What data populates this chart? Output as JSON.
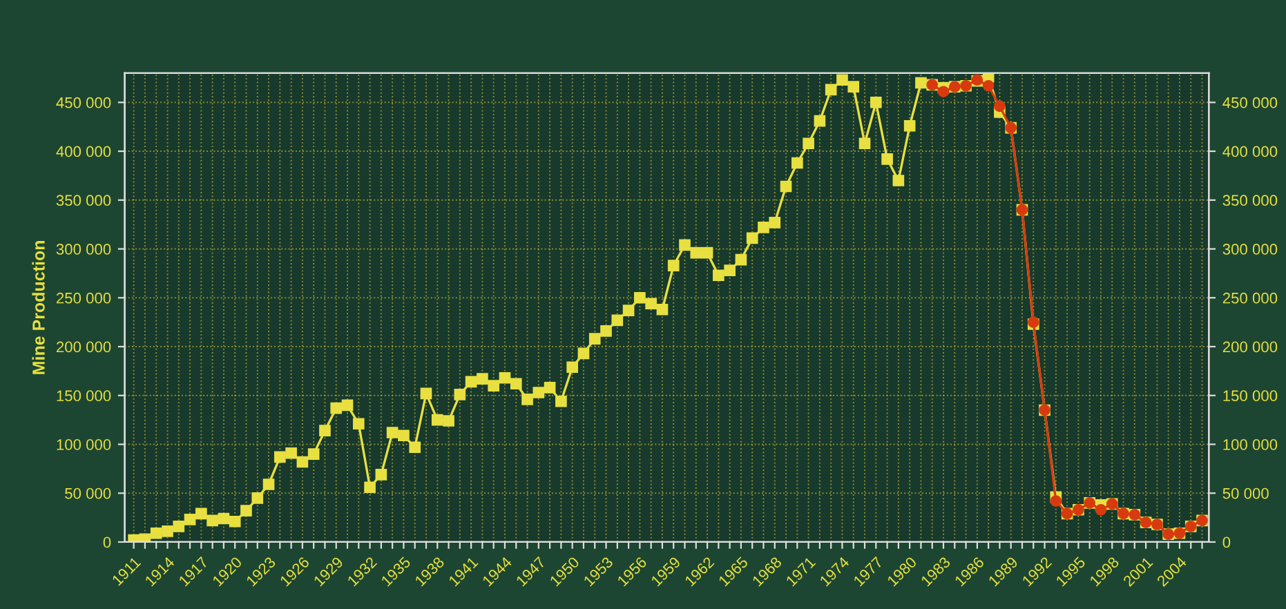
{
  "chart_data": {
    "type": "line",
    "ylabel": "Mine Production",
    "grid": true,
    "line_style": "solid",
    "xlim": [
      1910.2,
      2006.6
    ],
    "ylim": [
      0,
      480000
    ],
    "y2lim": [
      0,
      480000
    ],
    "xticks": [
      {
        "value": 1911,
        "label": "1911"
      },
      {
        "value": 1912,
        "label": null
      },
      {
        "value": 1913,
        "label": null
      },
      {
        "value": 1914,
        "label": "1914"
      },
      {
        "value": 1915,
        "label": null
      },
      {
        "value": 1916,
        "label": null
      },
      {
        "value": 1917,
        "label": "1917"
      },
      {
        "value": 1918,
        "label": null
      },
      {
        "value": 1919,
        "label": null
      },
      {
        "value": 1920,
        "label": "1920"
      },
      {
        "value": 1921,
        "label": null
      },
      {
        "value": 1922,
        "label": null
      },
      {
        "value": 1923,
        "label": "1923"
      },
      {
        "value": 1924,
        "label": null
      },
      {
        "value": 1925,
        "label": null
      },
      {
        "value": 1926,
        "label": "1926"
      },
      {
        "value": 1927,
        "label": null
      },
      {
        "value": 1928,
        "label": null
      },
      {
        "value": 1929,
        "label": "1929"
      },
      {
        "value": 1930,
        "label": null
      },
      {
        "value": 1931,
        "label": null
      },
      {
        "value": 1932,
        "label": "1932"
      },
      {
        "value": 1933,
        "label": null
      },
      {
        "value": 1934,
        "label": null
      },
      {
        "value": 1935,
        "label": "1935"
      },
      {
        "value": 1936,
        "label": null
      },
      {
        "value": 1937,
        "label": null
      },
      {
        "value": 1938,
        "label": "1938"
      },
      {
        "value": 1939,
        "label": null
      },
      {
        "value": 1940,
        "label": null
      },
      {
        "value": 1941,
        "label": "1941"
      },
      {
        "value": 1942,
        "label": null
      },
      {
        "value": 1943,
        "label": null
      },
      {
        "value": 1944,
        "label": "1944"
      },
      {
        "value": 1945,
        "label": null
      },
      {
        "value": 1946,
        "label": null
      },
      {
        "value": 1947,
        "label": "1947"
      },
      {
        "value": 1948,
        "label": null
      },
      {
        "value": 1949,
        "label": null
      },
      {
        "value": 1950,
        "label": "1950"
      },
      {
        "value": 1951,
        "label": null
      },
      {
        "value": 1952,
        "label": null
      },
      {
        "value": 1953,
        "label": "1953"
      },
      {
        "value": 1954,
        "label": null
      },
      {
        "value": 1955,
        "label": null
      },
      {
        "value": 1956,
        "label": "1956"
      },
      {
        "value": 1957,
        "label": null
      },
      {
        "value": 1958,
        "label": null
      },
      {
        "value": 1959,
        "label": "1959"
      },
      {
        "value": 1960,
        "label": null
      },
      {
        "value": 1961,
        "label": null
      },
      {
        "value": 1962,
        "label": "1962"
      },
      {
        "value": 1963,
        "label": null
      },
      {
        "value": 1964,
        "label": null
      },
      {
        "value": 1965,
        "label": "1965"
      },
      {
        "value": 1966,
        "label": null
      },
      {
        "value": 1967,
        "label": null
      },
      {
        "value": 1968,
        "label": "1968"
      },
      {
        "value": 1969,
        "label": null
      },
      {
        "value": 1970,
        "label": null
      },
      {
        "value": 1971,
        "label": "1971"
      },
      {
        "value": 1972,
        "label": null
      },
      {
        "value": 1973,
        "label": null
      },
      {
        "value": 1974,
        "label": "1974"
      },
      {
        "value": 1975,
        "label": null
      },
      {
        "value": 1976,
        "label": null
      },
      {
        "value": 1977,
        "label": "1977"
      },
      {
        "value": 1978,
        "label": null
      },
      {
        "value": 1979,
        "label": null
      },
      {
        "value": 1980,
        "label": "1980"
      },
      {
        "value": 1981,
        "label": null
      },
      {
        "value": 1982,
        "label": null
      },
      {
        "value": 1983,
        "label": "1983"
      },
      {
        "value": 1984,
        "label": null
      },
      {
        "value": 1985,
        "label": null
      },
      {
        "value": 1986,
        "label": "1986"
      },
      {
        "value": 1987,
        "label": null
      },
      {
        "value": 1988,
        "label": null
      },
      {
        "value": 1989,
        "label": "1989"
      },
      {
        "value": 1990,
        "label": null
      },
      {
        "value": 1991,
        "label": null
      },
      {
        "value": 1992,
        "label": "1992"
      },
      {
        "value": 1993,
        "label": null
      },
      {
        "value": 1994,
        "label": null
      },
      {
        "value": 1995,
        "label": "1995"
      },
      {
        "value": 1996,
        "label": null
      },
      {
        "value": 1997,
        "label": null
      },
      {
        "value": 1998,
        "label": "1998"
      },
      {
        "value": 1999,
        "label": null
      },
      {
        "value": 2000,
        "label": null
      },
      {
        "value": 2001,
        "label": "2001"
      },
      {
        "value": 2002,
        "label": null
      },
      {
        "value": 2003,
        "label": null
      },
      {
        "value": 2004,
        "label": "2004"
      },
      {
        "value": 2005,
        "label": null
      },
      {
        "value": 2006,
        "label": null
      }
    ],
    "yticks": [
      {
        "value": 0,
        "label": "0"
      },
      {
        "value": 50000,
        "label": "50 000"
      },
      {
        "value": 100000,
        "label": "100 000"
      },
      {
        "value": 150000,
        "label": "150 000"
      },
      {
        "value": 200000,
        "label": "200 000"
      },
      {
        "value": 250000,
        "label": "250 000"
      },
      {
        "value": 300000,
        "label": "300 000"
      },
      {
        "value": 350000,
        "label": "350 000"
      },
      {
        "value": 400000,
        "label": "400 000"
      },
      {
        "value": 450000,
        "label": "450 000"
      }
    ],
    "y2ticks": [
      {
        "value": 0,
        "label": "0"
      },
      {
        "value": 50000,
        "label": "50 000"
      },
      {
        "value": 100000,
        "label": "100 000"
      },
      {
        "value": 150000,
        "label": "150 000"
      },
      {
        "value": 200000,
        "label": "200 000"
      },
      {
        "value": 250000,
        "label": "250 000"
      },
      {
        "value": 300000,
        "label": "300 000"
      },
      {
        "value": 350000,
        "label": "350 000"
      },
      {
        "value": 400000,
        "label": "400 000"
      },
      {
        "value": 450000,
        "label": "450 000"
      }
    ],
    "series": [
      {
        "color": "#e8e040",
        "marker": "square",
        "x": [
          1911,
          1912,
          1913,
          1914,
          1915,
          1916,
          1917,
          1918,
          1919,
          1920,
          1921,
          1922,
          1923,
          1924,
          1925,
          1926,
          1927,
          1928,
          1929,
          1930,
          1931,
          1932,
          1933,
          1934,
          1935,
          1936,
          1937,
          1938,
          1939,
          1940,
          1941,
          1942,
          1943,
          1944,
          1945,
          1946,
          1947,
          1948,
          1949,
          1950,
          1951,
          1952,
          1953,
          1954,
          1955,
          1956,
          1957,
          1958,
          1959,
          1960,
          1961,
          1962,
          1963,
          1964,
          1965,
          1966,
          1967,
          1968,
          1969,
          1970,
          1971,
          1972,
          1973,
          1974,
          1975,
          1976,
          1977,
          1978,
          1979,
          1980,
          1981,
          1982,
          1983,
          1984,
          1985,
          1986,
          1987,
          1988,
          1989,
          1990,
          1991,
          1992,
          1993,
          1994,
          1995,
          1996,
          1997,
          1998,
          1999,
          2000,
          2001,
          2002,
          2003,
          2004,
          2005,
          2006
        ],
        "values": [
          2000,
          3000,
          9000,
          11000,
          16000,
          23000,
          29000,
          22000,
          24000,
          21000,
          32000,
          45000,
          59000,
          87000,
          91000,
          82000,
          90000,
          114000,
          137000,
          140000,
          121000,
          56000,
          69000,
          112000,
          109000,
          97000,
          152000,
          125000,
          124000,
          151000,
          164000,
          167000,
          160000,
          168000,
          162000,
          146000,
          153000,
          158000,
          144000,
          179000,
          193000,
          208000,
          216000,
          227000,
          237000,
          250000,
          244000,
          238000,
          283000,
          304000,
          296000,
          296000,
          273000,
          278000,
          289000,
          311000,
          322000,
          327000,
          364000,
          388000,
          408000,
          431000,
          463000,
          473000,
          466000,
          408000,
          450000,
          392000,
          370000,
          426000,
          470000,
          468000,
          465000,
          466000,
          467000,
          472000,
          476000,
          440000,
          424000,
          340000,
          223000,
          135000,
          46000,
          29000,
          33000,
          40000,
          38000,
          39000,
          29000,
          28000,
          20000,
          18000,
          8000,
          9000,
          16000,
          22000
        ]
      },
      {
        "color": "#d83a10",
        "marker": "circle",
        "x": [
          1982,
          1983,
          1984,
          1985,
          1986,
          1987,
          1988,
          1989,
          1990,
          1991,
          1992,
          1993,
          1994,
          1995,
          1996,
          1997,
          1998,
          1999,
          2000,
          2001,
          2002,
          2003,
          2004,
          2005,
          2006
        ],
        "values": [
          468000,
          461000,
          466000,
          467000,
          473000,
          467000,
          446000,
          424000,
          340000,
          225000,
          135000,
          42000,
          29000,
          33000,
          40000,
          33000,
          39000,
          29000,
          28000,
          20000,
          18000,
          8000,
          9000,
          16000,
          22000
        ]
      }
    ]
  }
}
